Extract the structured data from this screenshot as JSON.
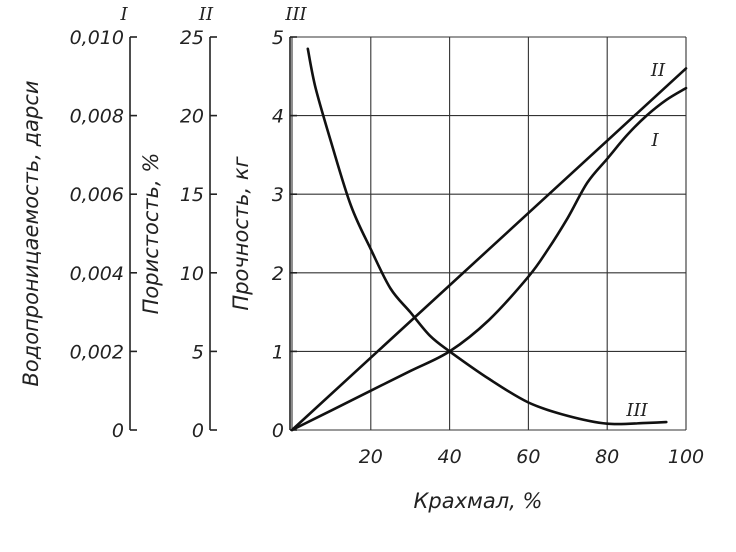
{
  "chart_data": {
    "type": "line",
    "xlabel": "Крахмал, %",
    "x_ticks": [
      "20",
      "40",
      "60",
      "80",
      "100"
    ],
    "xlim": [
      0,
      100
    ],
    "grid": true,
    "axes": [
      {
        "id": "I",
        "label": "Водопроницаемость, дарси",
        "ticks": [
          "0",
          "0,002",
          "0,004",
          "0,006",
          "0,008",
          "0,010"
        ],
        "range": [
          0,
          0.01
        ]
      },
      {
        "id": "II",
        "label": "Пористость, %",
        "ticks": [
          "0",
          "5",
          "10",
          "15",
          "20",
          "25"
        ],
        "range": [
          0,
          25
        ]
      },
      {
        "id": "III",
        "label": "Прочность, кг",
        "ticks": [
          "0",
          "1",
          "2",
          "3",
          "4",
          "5"
        ],
        "range": [
          0,
          5
        ]
      }
    ],
    "series": [
      {
        "name": "I",
        "axis": "I",
        "color": "#111111",
        "x": [
          0,
          10,
          20,
          30,
          40,
          50,
          60,
          65,
          70,
          75,
          80,
          85,
          90,
          95,
          100
        ],
        "y": [
          0,
          0.0005,
          0.001,
          0.0015,
          0.002,
          0.0028,
          0.0039,
          0.0046,
          0.0054,
          0.0063,
          0.0069,
          0.0075,
          0.008,
          0.0084,
          0.0087
        ]
      },
      {
        "name": "II",
        "axis": "II",
        "color": "#111111",
        "x": [
          0,
          100
        ],
        "y": [
          0,
          23
        ]
      },
      {
        "name": "III",
        "axis": "III",
        "color": "#111111",
        "x": [
          4,
          6,
          10,
          15,
          20,
          25,
          30,
          35,
          40,
          50,
          60,
          70,
          80,
          90,
          95
        ],
        "y": [
          4.85,
          4.35,
          3.65,
          2.85,
          2.3,
          1.8,
          1.5,
          1.2,
          1.0,
          0.65,
          0.35,
          0.18,
          0.08,
          0.09,
          0.1
        ]
      }
    ]
  }
}
